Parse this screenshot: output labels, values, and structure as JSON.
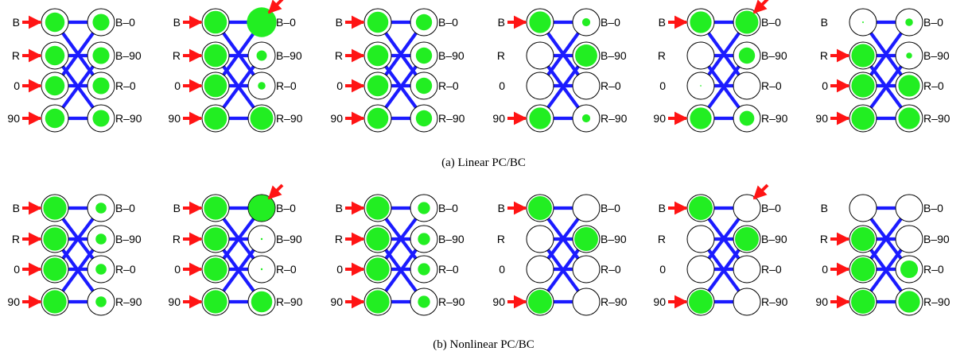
{
  "colors": {
    "edge": "#1b1bff",
    "arrow": "#ff1414",
    "activation": "#22ee22",
    "node_stroke": "#000000",
    "node_fill": "#ffffff",
    "text": "#000000"
  },
  "input_labels": [
    "B",
    "R",
    "0",
    "90"
  ],
  "output_labels": [
    "B–0",
    "B–90",
    "R–0",
    "R–90"
  ],
  "connections": [
    [
      0,
      0
    ],
    [
      0,
      2
    ],
    [
      1,
      1
    ],
    [
      1,
      3
    ],
    [
      2,
      0
    ],
    [
      2,
      2
    ],
    [
      3,
      1
    ],
    [
      3,
      3
    ]
  ],
  "rows": [
    {
      "caption": "(a) Linear PC/BC",
      "panels": [
        {
          "inputs_active": [
            true,
            true,
            true,
            true
          ],
          "input_fill": [
            0.72,
            0.72,
            0.72,
            0.72
          ],
          "output_fill": [
            0.62,
            0.62,
            0.62,
            0.62
          ],
          "feedback_arrow": false
        },
        {
          "inputs_active": [
            true,
            true,
            true,
            true
          ],
          "input_fill": [
            0.84,
            0.84,
            0.84,
            0.84
          ],
          "output_fill": [
            1.1,
            0.38,
            0.28,
            0.85
          ],
          "feedback_arrow": true
        },
        {
          "inputs_active": [
            true,
            true,
            true,
            true
          ],
          "input_fill": [
            0.78,
            0.78,
            0.78,
            0.78
          ],
          "output_fill": [
            0.6,
            0.6,
            0.6,
            0.6
          ],
          "feedback_arrow": false
        },
        {
          "inputs_active": [
            true,
            false,
            false,
            true
          ],
          "input_fill": [
            0.8,
            0,
            0,
            0.8
          ],
          "output_fill": [
            0.3,
            0.82,
            0,
            0.3
          ],
          "feedback_arrow": false
        },
        {
          "inputs_active": [
            true,
            false,
            false,
            true
          ],
          "input_fill": [
            0.8,
            0,
            0.05,
            0.8
          ],
          "output_fill": [
            0.85,
            0.6,
            0,
            0.55
          ],
          "feedback_arrow": true
        },
        {
          "inputs_active": [
            false,
            true,
            true,
            true
          ],
          "input_fill": [
            0.06,
            0.86,
            0.86,
            0.86
          ],
          "output_fill": [
            0.28,
            0.22,
            0.8,
            0.8
          ],
          "feedback_arrow": false
        }
      ]
    },
    {
      "caption": "(b) Nonlinear PC/BC",
      "panels": [
        {
          "inputs_active": [
            true,
            true,
            true,
            true
          ],
          "input_fill": [
            0.86,
            0.86,
            0.86,
            0.86
          ],
          "output_fill": [
            0.4,
            0.4,
            0.4,
            0.4
          ],
          "feedback_arrow": false
        },
        {
          "inputs_active": [
            true,
            true,
            true,
            true
          ],
          "input_fill": [
            0.86,
            0.86,
            0.86,
            0.86
          ],
          "output_fill": [
            0.98,
            0.07,
            0.07,
            0.78
          ],
          "feedback_arrow": true
        },
        {
          "inputs_active": [
            true,
            true,
            true,
            true
          ],
          "input_fill": [
            0.86,
            0.86,
            0.86,
            0.86
          ],
          "output_fill": [
            0.45,
            0.45,
            0.45,
            0.45
          ],
          "feedback_arrow": false
        },
        {
          "inputs_active": [
            true,
            false,
            false,
            true
          ],
          "input_fill": [
            0.88,
            0,
            0,
            0.88
          ],
          "output_fill": [
            0,
            0.88,
            0,
            0
          ],
          "feedback_arrow": false
        },
        {
          "inputs_active": [
            true,
            false,
            false,
            true
          ],
          "input_fill": [
            0.88,
            0,
            0,
            0.88
          ],
          "output_fill": [
            0,
            0.88,
            0,
            0
          ],
          "feedback_arrow": true
        },
        {
          "inputs_active": [
            false,
            true,
            true,
            true
          ],
          "input_fill": [
            0,
            0.88,
            0.88,
            0.88
          ],
          "output_fill": [
            0,
            0,
            0.65,
            0.8
          ],
          "feedback_arrow": false
        }
      ]
    }
  ]
}
